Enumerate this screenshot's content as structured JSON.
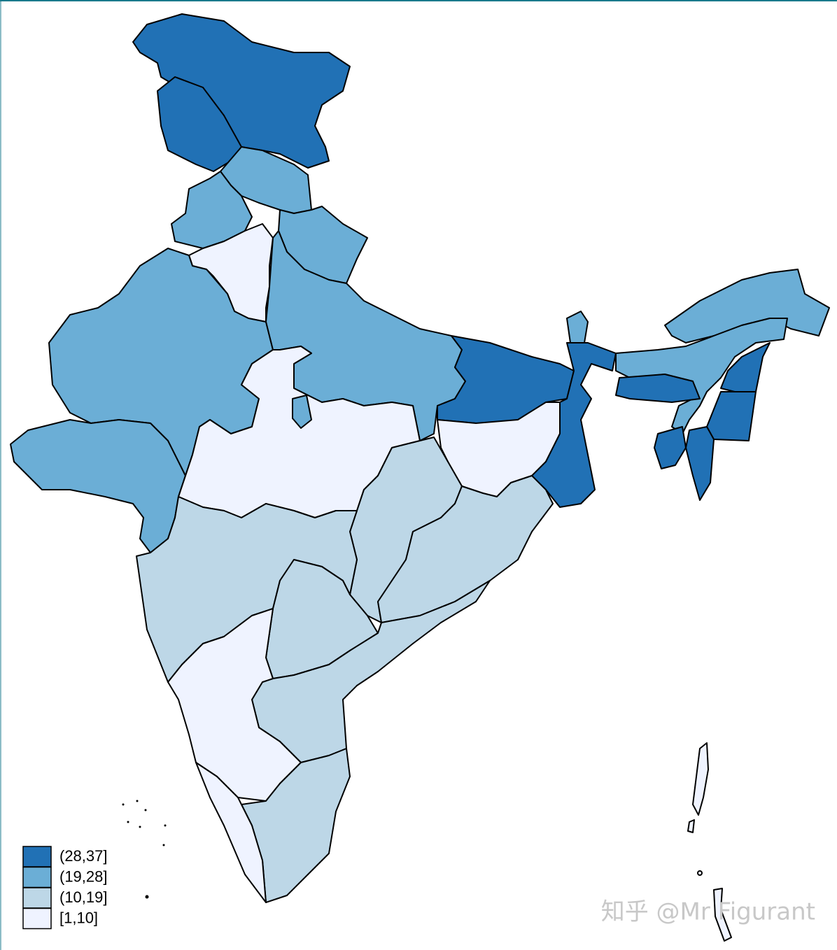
{
  "map": {
    "legend": [
      {
        "label": "(28,37]",
        "color": "#2171b5"
      },
      {
        "label": "(19,28]",
        "color": "#6baed6"
      },
      {
        "label": "(10,19]",
        "color": "#bdd7e7"
      },
      {
        "label": "[1,10]",
        "color": "#eff3ff"
      }
    ],
    "watermark": "知乎 @Mr Figurant"
  }
}
